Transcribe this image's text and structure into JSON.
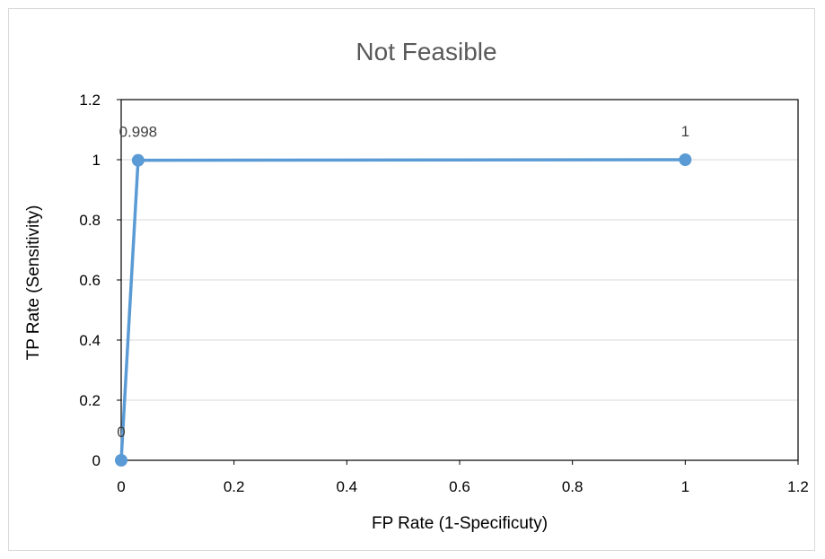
{
  "chart_data": {
    "type": "scatter",
    "title": "Not Feasible",
    "xlabel": "FP Rate (1-Specificuty)",
    "ylabel": "TP Rate (Sensitivity)",
    "xlim": [
      0,
      1.2
    ],
    "ylim": [
      0,
      1.2
    ],
    "x_ticks": [
      "0",
      "0.2",
      "0.4",
      "0.6",
      "0.8",
      "1",
      "1.2"
    ],
    "y_ticks": [
      "0",
      "0.2",
      "0.4",
      "0.6",
      "0.8",
      "1",
      "1.2"
    ],
    "grid": "horizontal",
    "legend": "none",
    "series": [
      {
        "points": [
          {
            "x": 0,
            "y": 0,
            "label": "0"
          },
          {
            "x": 0.03,
            "y": 0.998,
            "label": "0.998"
          },
          {
            "x": 1,
            "y": 1,
            "label": "1"
          }
        ],
        "color": "#5b9bd5",
        "mode": "lines+markers"
      }
    ]
  }
}
